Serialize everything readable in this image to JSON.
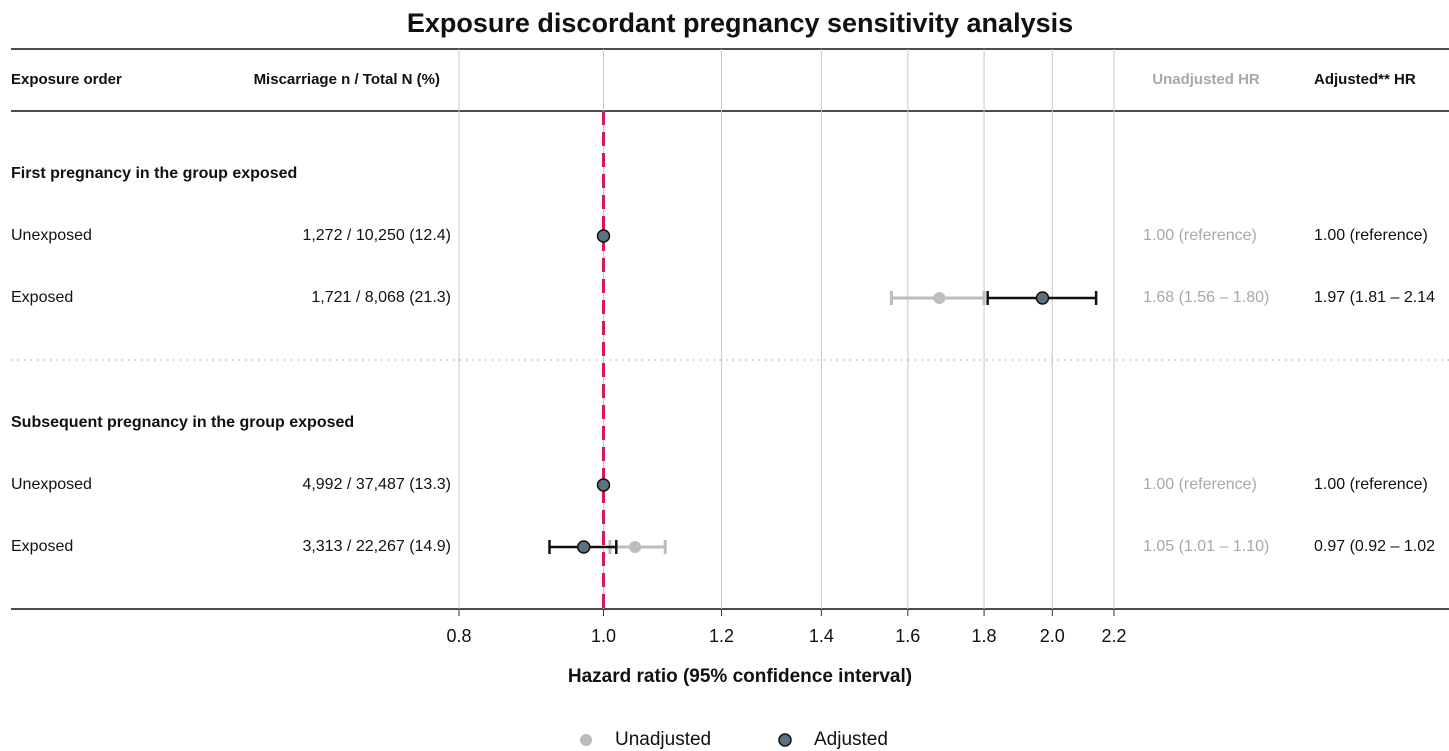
{
  "chart_data": {
    "type": "forest",
    "title": "Exposure discordant pregnancy sensitivity analysis",
    "columns": {
      "label": "Exposure order",
      "count": "Miscarriage n / Total N (%)",
      "unadjusted": "Unadjusted HR",
      "adjusted": "Adjusted** HR"
    },
    "groups": [
      {
        "label": "First pregnancy in the group exposed",
        "rows": [
          {
            "label": "Unexposed",
            "count": "1,272 / 10,250 (12.4)",
            "unadjusted": "1.00 (reference)",
            "adjusted": "1.00 (reference)"
          },
          {
            "label": "Exposed",
            "count": "1,721 / 8,068 (21.3)",
            "unadjusted": "1.68 (1.56 – 1.80)",
            "adjusted": "1.97 (1.81 – 2.14"
          }
        ]
      },
      {
        "label": "Subsequent pregnancy in the group exposed",
        "rows": [
          {
            "label": "Unexposed",
            "count": "4,992 / 37,487 (13.3)",
            "unadjusted": "1.00 (reference)",
            "adjusted": "1.00 (reference)"
          },
          {
            "label": "Exposed",
            "count": "3,313 / 22,267 (14.9)",
            "unadjusted": "1.05 (1.01 – 1.10)",
            "adjusted": "0.97 (0.92 – 1.02"
          }
        ]
      }
    ],
    "series": [
      {
        "name": "Unadjusted",
        "color": "#bdbdbd",
        "values": [
          1.0,
          1.68,
          1.0,
          1.05
        ],
        "lower": [
          null,
          1.56,
          null,
          1.01
        ],
        "upper": [
          null,
          1.8,
          null,
          1.1
        ]
      },
      {
        "name": "Adjusted",
        "color": "#5c7280",
        "values": [
          1.0,
          1.97,
          1.0,
          0.97
        ],
        "lower": [
          null,
          1.81,
          null,
          0.92
        ],
        "upper": [
          null,
          2.14,
          null,
          1.02
        ]
      }
    ],
    "xlabel": "Hazard ratio (95% confidence interval)",
    "xscale": "log",
    "xlim": [
      0.8,
      2.2
    ],
    "xticks": [
      0.8,
      {
        "value": 1,
        "label": "1.0"
      },
      1.2,
      1.4,
      1.6,
      1.8,
      {
        "value": 2,
        "label": "2.0"
      },
      2.2
    ],
    "refline": 1,
    "refline_color": "#d6175a",
    "grid": true
  }
}
